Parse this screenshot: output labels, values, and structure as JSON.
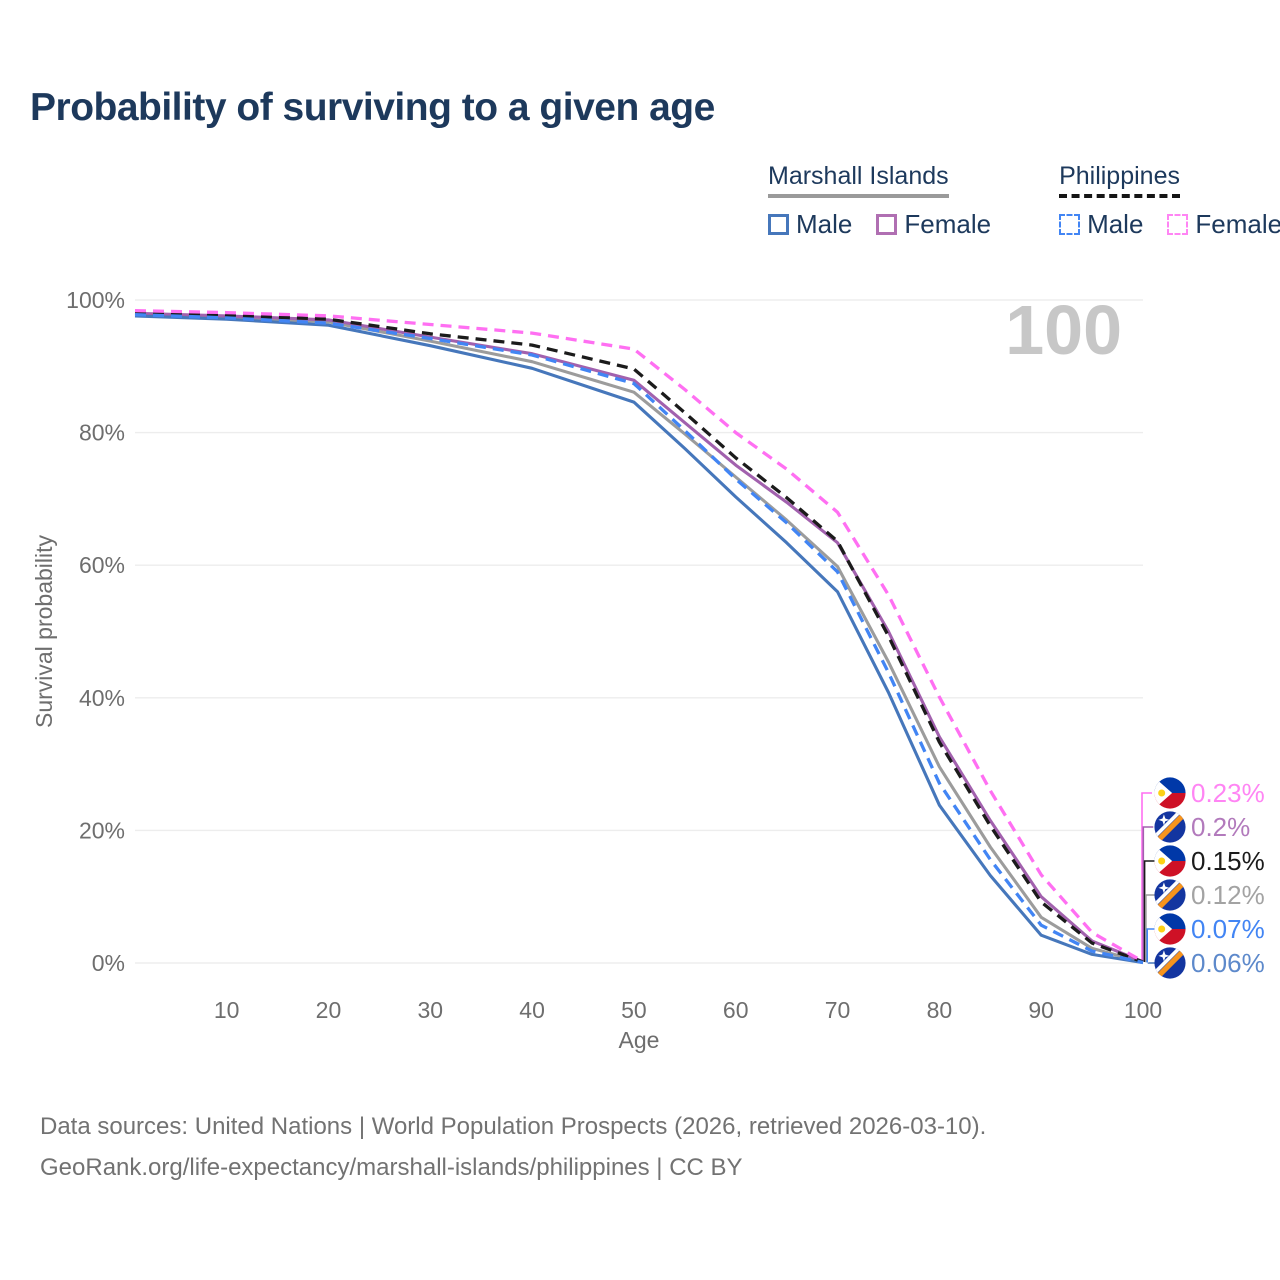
{
  "title": "Probability of surviving to a given age",
  "watermark": "100",
  "legend": {
    "groups": [
      {
        "label": "Marshall Islands",
        "underline_style": "solid",
        "underline_color": "#9a9a9a",
        "items": [
          {
            "label": "Male",
            "color": "#4677bb",
            "dashed": false
          },
          {
            "label": "Female",
            "color": "#b06fb2",
            "dashed": false
          }
        ]
      },
      {
        "label": "Philippines",
        "underline_style": "dashed",
        "underline_color": "#151515",
        "items": [
          {
            "label": "Male",
            "color": "#4285f4",
            "dashed": true
          },
          {
            "label": "Female",
            "color": "#ff85f4",
            "dashed": true
          }
        ]
      }
    ]
  },
  "chart_data": {
    "type": "line",
    "title": "Probability of surviving to a given age",
    "xlabel": "Age",
    "ylabel": "Survival probability",
    "xlim": [
      1,
      100
    ],
    "ylim": [
      0,
      100
    ],
    "grid": true,
    "legend_position": "top-right",
    "xticks": [
      10,
      20,
      30,
      40,
      50,
      60,
      70,
      80,
      90,
      100
    ],
    "yticks": [
      0,
      20,
      40,
      60,
      80,
      100
    ],
    "ytick_suffix": "%",
    "ages": [
      1,
      10,
      20,
      30,
      40,
      50,
      55,
      60,
      65,
      70,
      75,
      80,
      85,
      90,
      95,
      100
    ],
    "series": [
      {
        "name": "Philippines — Female",
        "flag": "philippines",
        "dashed": true,
        "line_color": "#ff6ff2",
        "label_color": "#ff85f4",
        "end_label": "0.23%",
        "values": [
          98.4,
          98.1,
          97.6,
          96.3,
          95.0,
          92.6,
          86.5,
          80.0,
          74.5,
          68.0,
          55.5,
          40.1,
          26.0,
          13.3,
          4.6,
          0.23
        ]
      },
      {
        "name": "Marshall Islands — Female",
        "flag": "marshall-islands",
        "dashed": false,
        "line_color": "#a261ae",
        "label_color": "#b27abc",
        "end_label": "0.2%",
        "values": [
          98.0,
          97.6,
          97.0,
          94.4,
          91.9,
          87.9,
          81.5,
          75.1,
          69.5,
          63.4,
          50.0,
          34.1,
          21.5,
          10.0,
          3.3,
          0.2
        ]
      },
      {
        "name": "Philippines — Both sexes",
        "flag": "philippines",
        "dashed": true,
        "line_color": "#1b1b1b",
        "label_color": "#1b1b1b",
        "end_label": "0.15%",
        "values": [
          98.1,
          97.7,
          97.1,
          94.9,
          93.2,
          89.6,
          83.0,
          76.2,
          70.2,
          63.6,
          49.3,
          33.3,
          20.7,
          9.2,
          3.0,
          0.15
        ]
      },
      {
        "name": "Marshall Islands — Both sexes",
        "flag": "marshall-islands",
        "dashed": false,
        "line_color": "#9c9c9c",
        "label_color": "#a3a3a3",
        "end_label": "0.12%",
        "values": [
          97.9,
          97.4,
          96.7,
          93.8,
          90.7,
          86.1,
          79.8,
          73.3,
          66.8,
          59.8,
          45.4,
          29.6,
          17.5,
          6.9,
          2.2,
          0.12
        ]
      },
      {
        "name": "Philippines — Male",
        "flag": "philippines",
        "dashed": true,
        "line_color": "#4285f4",
        "label_color": "#4285f4",
        "end_label": "0.07%",
        "values": [
          97.8,
          97.3,
          96.5,
          94.2,
          91.7,
          87.4,
          80.3,
          73.0,
          66.4,
          59.0,
          43.8,
          27.1,
          15.6,
          5.7,
          1.8,
          0.07
        ]
      },
      {
        "name": "Marshall Islands — Male",
        "flag": "marshall-islands",
        "dashed": false,
        "line_color": "#4677bb",
        "label_color": "#5d89cb",
        "end_label": "0.06%",
        "values": [
          97.6,
          97.1,
          96.2,
          93.1,
          89.7,
          84.6,
          77.6,
          70.3,
          63.4,
          56.0,
          40.8,
          23.8,
          13.2,
          4.2,
          1.3,
          0.06
        ]
      }
    ]
  },
  "footer": {
    "line1": "Data sources: United Nations | World Population Prospects (2026, retrieved 2026-03-10).",
    "line2": "GeoRank.org/life-expectancy/marshall-islands/philippines | CC BY"
  },
  "colors": {
    "title_text": "#1d395c",
    "axis_text": "#6e6e6e",
    "gridline": "#ededed",
    "watermark": "#c7c7c7",
    "footer_text": "#727272"
  }
}
